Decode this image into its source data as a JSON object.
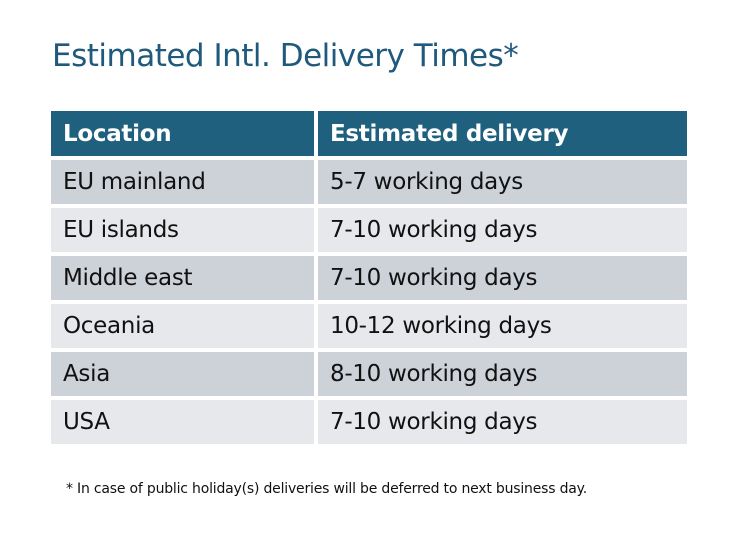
{
  "title": "Estimated Intl. Delivery Times*",
  "table": {
    "headers": [
      "Location",
      "Estimated delivery"
    ],
    "rows": [
      [
        "EU mainland",
        "5-7 working days"
      ],
      [
        "EU islands",
        "7-10 working days"
      ],
      [
        "Middle east",
        "7-10 working days"
      ],
      [
        "Oceania",
        "10-12 working days"
      ],
      [
        "Asia",
        "8-10 working days"
      ],
      [
        "USA",
        "7-10 working days"
      ]
    ]
  },
  "footnote": "* In case of public holiday(s) deliveries will be deferred to next business day.",
  "colors": {
    "header": "#20607f",
    "row_dark": "#cdd1d8",
    "row_light": "#e6e8eb",
    "title": "#1f5a7c"
  }
}
